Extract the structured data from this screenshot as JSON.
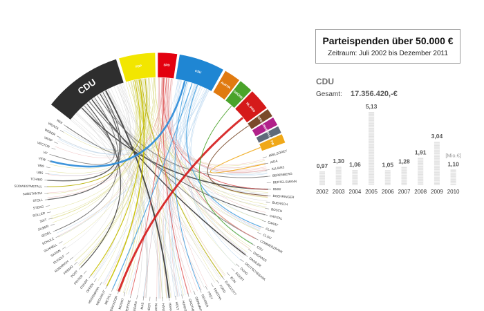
{
  "info": {
    "title": "Parteispenden über 50.000 €",
    "subtitle": "Zeitraum: Juli 2002 bis Dezember 2011"
  },
  "selected": {
    "party": "CDU",
    "total_label": "Gesamt:",
    "total_value": "17.356.420,-€"
  },
  "chart_data": [
    {
      "type": "chord",
      "parties": [
        {
          "name": "CDU",
          "color": "#2e2e2e",
          "text_color": "#ffffff"
        },
        {
          "name": "FDP",
          "color": "#f2e600",
          "text_color": "#ffffff"
        },
        {
          "name": "SPD",
          "color": "#e3000f",
          "text_color": "#ffffff"
        },
        {
          "name": "CSU",
          "color": "#1f86d3",
          "text_color": "#ffffff"
        },
        {
          "name": "AUFTR.",
          "color": "#e07a10",
          "text_color": "#ffffff"
        },
        {
          "name": "GRÜNE",
          "color": "#4aa32a",
          "text_color": "#ffffff"
        },
        {
          "name": "NL-PRO",
          "color": "#d51a1a",
          "text_color": "#ffffff"
        },
        {
          "name": "NPD",
          "color": "#7a4a2a",
          "text_color": "#ffffff"
        },
        {
          "name": "LINKE",
          "color": "#b1218a",
          "text_color": "#ffffff"
        },
        {
          "name": "DVU",
          "color": "#5f6a7a",
          "text_color": "#ffffff"
        },
        {
          "name": "FW",
          "color": "#f0a818",
          "text_color": "#ffffff"
        }
      ],
      "donors": [
        "ABELSOREY",
        "AIDA",
        "ALLIANZ",
        "BERENBERG",
        "BERTELSMANN",
        "BMW",
        "BOEHRINGER",
        "BUERSCH",
        "BOSCH",
        "CAPITAL",
        "CARAT",
        "CLAIR",
        "CLOU",
        "COMMERZBANK",
        "CSU",
        "DAGRASS",
        "DAIMLER",
        "DEUTSCHEBANK",
        "DUAG",
        "EGERT",
        "EON",
        "EUROJOTT",
        "FORD",
        "FORTHA",
        "FREY",
        "GEHRER",
        "GERMANY",
        "GROTHE",
        "HUNDT",
        "HOLT",
        "HAHN",
        "HANSENS",
        "KAHN",
        "LIEDHEER",
        "MAS",
        "MEDIAN",
        "MERCKE",
        "MOUNT",
        "MERCADOR",
        "METALL",
        "MEDIASUT",
        "HEISSMANN",
        "OFFEN",
        "OSKAR",
        "PINTER",
        "POST",
        "PREMO",
        "ROEHRICH",
        "RUDOLF",
        "SAXON",
        "SCHNELL",
        "SCHULZ",
        "SEDEL",
        "SILBER",
        "SIXT",
        "SOLLER",
        "STEAG",
        "STOLL",
        "SUBSTANTIA",
        "SÜDWESTMETALL",
        "TCHIBO",
        "UBS",
        "VBG",
        "VEW",
        "VC",
        "VECTOR",
        "VRAP",
        "WEBER",
        "WONTA",
        "WW"
      ],
      "links": [
        {
          "donor": 5,
          "party": 0,
          "color": "#444444",
          "weight": 1.6
        },
        {
          "donor": 13,
          "party": 0,
          "color": "#888888",
          "weight": 1.2
        },
        {
          "donor": 16,
          "party": 0,
          "color": "#333333",
          "weight": 1.4
        },
        {
          "donor": 64,
          "party": 0,
          "color": "#7a7a7a",
          "weight": 1
        },
        {
          "donor": 57,
          "party": 0,
          "color": "#555555",
          "weight": 1.2
        },
        {
          "donor": 52,
          "party": 0,
          "color": "#666666",
          "weight": 1
        },
        {
          "donor": 45,
          "party": 0,
          "color": "#444444",
          "weight": 1.2
        },
        {
          "donor": 30,
          "party": 0,
          "color": "#3a3a3a",
          "weight": 2
        },
        {
          "donor": 3,
          "party": 0,
          "color": "#777777",
          "weight": 1
        },
        {
          "donor": 9,
          "party": 0,
          "color": "#555555",
          "weight": 1
        },
        {
          "donor": 69,
          "party": 0,
          "color": "#666666",
          "weight": 1
        },
        {
          "donor": 60,
          "party": 0,
          "color": "#555555",
          "weight": 1.4
        },
        {
          "donor": 40,
          "party": 1,
          "color": "#c8c000",
          "weight": 1.6
        },
        {
          "donor": 43,
          "party": 1,
          "color": "#c8c000",
          "weight": 1.2
        },
        {
          "donor": 59,
          "party": 1,
          "color": "#b8b000",
          "weight": 1
        },
        {
          "donor": 21,
          "party": 1,
          "color": "#b8b000",
          "weight": 1
        },
        {
          "donor": 5,
          "party": 2,
          "color": "#e06060",
          "weight": 1
        },
        {
          "donor": 13,
          "party": 2,
          "color": "#e08080",
          "weight": 1
        },
        {
          "donor": 36,
          "party": 2,
          "color": "#e06060",
          "weight": 1
        },
        {
          "donor": 27,
          "party": 2,
          "color": "#e06060",
          "weight": 1
        },
        {
          "donor": 63,
          "party": 3,
          "color": "#2b8bd8",
          "weight": 2.6
        },
        {
          "donor": 11,
          "party": 3,
          "color": "#4aa3e0",
          "weight": 1.2
        },
        {
          "donor": 39,
          "party": 3,
          "color": "#4aa3e0",
          "weight": 1.2
        },
        {
          "donor": 25,
          "party": 3,
          "color": "#4aa3e0",
          "weight": 1
        },
        {
          "donor": 38,
          "party": 6,
          "color": "#d51a1a",
          "weight": 3
        },
        {
          "donor": 1,
          "party": 10,
          "color": "#f0a818",
          "weight": 1.2
        },
        {
          "donor": 6,
          "party": 7,
          "color": "#7a4a2a",
          "weight": 1
        },
        {
          "donor": 14,
          "party": 5,
          "color": "#4aa32a",
          "weight": 1
        }
      ]
    },
    {
      "type": "bar",
      "categories": [
        "2002",
        "2003",
        "2004",
        "2005",
        "2006",
        "2007",
        "2008",
        "2009",
        "2010"
      ],
      "values": [
        0.97,
        1.3,
        1.06,
        5.13,
        1.05,
        1.28,
        1.91,
        3.04,
        1.1
      ],
      "value_labels": [
        "0,97",
        "1,30",
        "1,06",
        "5,13",
        "1,05",
        "1,28",
        "1,91",
        "3,04",
        "1,10"
      ],
      "unit_label": "[Mio.€]",
      "ylim": [
        0,
        5.13
      ]
    }
  ]
}
